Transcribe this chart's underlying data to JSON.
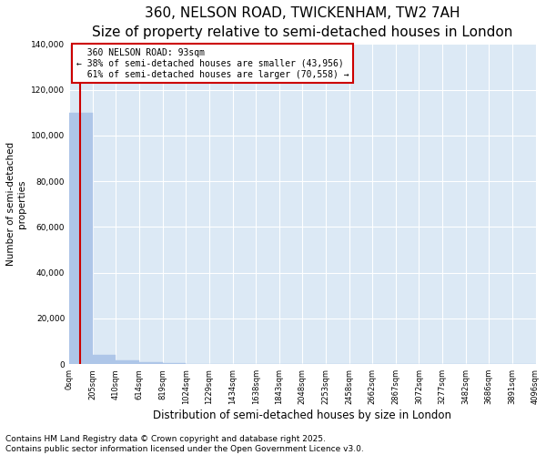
{
  "title": "360, NELSON ROAD, TWICKENHAM, TW2 7AH",
  "subtitle": "Size of property relative to semi-detached houses in London",
  "xlabel": "Distribution of semi-detached houses by size in London",
  "ylabel": "Number of semi-detached\nproperties",
  "bar_edges": [
    0,
    205,
    410,
    614,
    819,
    1024,
    1229,
    1434,
    1638,
    1843,
    2048,
    2253,
    2458,
    2662,
    2867,
    3072,
    3277,
    3482,
    3686,
    3891,
    4096
  ],
  "bar_heights": [
    110000,
    4000,
    1500,
    800,
    400,
    250,
    150,
    100,
    80,
    60,
    50,
    40,
    30,
    25,
    20,
    18,
    15,
    12,
    10,
    8
  ],
  "bar_color": "#aec6e8",
  "bar_edgecolor": "#aec6e8",
  "property_size": 93,
  "property_label": "360 NELSON ROAD: 93sqm",
  "pct_smaller": 38,
  "count_smaller": 43956,
  "pct_larger": 61,
  "count_larger": 70558,
  "redline_color": "#cc0000",
  "annotation_box_color": "#cc0000",
  "ylim": [
    0,
    140000
  ],
  "yticks": [
    0,
    20000,
    40000,
    60000,
    80000,
    100000,
    120000,
    140000
  ],
  "xtick_labels": [
    "0sqm",
    "205sqm",
    "410sqm",
    "614sqm",
    "819sqm",
    "1024sqm",
    "1229sqm",
    "1434sqm",
    "1638sqm",
    "1843sqm",
    "2048sqm",
    "2253sqm",
    "2458sqm",
    "2662sqm",
    "2867sqm",
    "3072sqm",
    "3277sqm",
    "3482sqm",
    "3686sqm",
    "3891sqm",
    "4096sqm"
  ],
  "grid_color": "#c8d8e8",
  "bg_color": "#dce9f5",
  "title_fontsize": 11,
  "subtitle_fontsize": 9,
  "footer_text": "Contains HM Land Registry data © Crown copyright and database right 2025.\nContains public sector information licensed under the Open Government Licence v3.0.",
  "footer_fontsize": 6.5
}
